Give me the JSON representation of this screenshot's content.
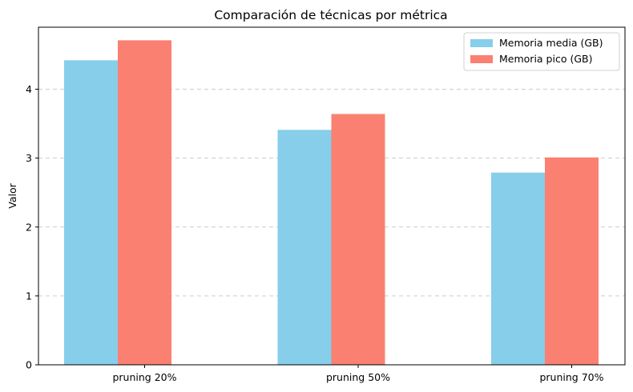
{
  "chart_data": {
    "type": "bar",
    "title": "Comparación de técnicas por métrica",
    "xlabel": "",
    "ylabel": "Valor",
    "categories": [
      "pruning 20%",
      "pruning 50%",
      "pruning 70%"
    ],
    "series": [
      {
        "name": "Memoria media (GB)",
        "color": "#87CEEB",
        "values": [
          4.42,
          3.41,
          2.79
        ]
      },
      {
        "name": "Memoria pico (GB)",
        "color": "#FA8072",
        "values": [
          4.71,
          3.64,
          3.01
        ]
      }
    ],
    "ylim": [
      0,
      4.9
    ],
    "yticks": [
      0,
      1,
      2,
      3,
      4
    ],
    "grid": {
      "axis": "y",
      "style": "dashed",
      "visible": true
    },
    "legend": {
      "placement": "top-right"
    }
  }
}
